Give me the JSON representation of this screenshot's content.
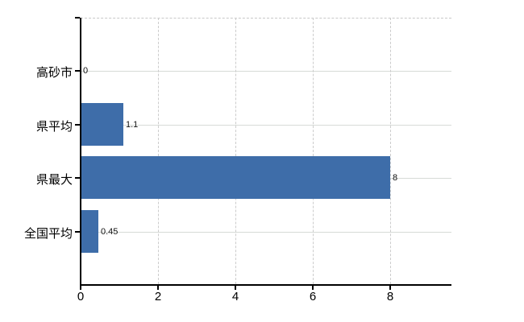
{
  "chart_data": {
    "type": "bar",
    "orientation": "horizontal",
    "title": "",
    "categories": [
      "高砂市",
      "県平均",
      "県最大",
      "全国平均"
    ],
    "values": [
      0,
      1.1,
      8,
      0.45
    ],
    "value_labels": [
      "0",
      "1.1",
      "8",
      "0.45"
    ],
    "x_ticks": [
      0,
      2,
      4,
      6,
      8
    ],
    "x_tick_labels": [
      "0",
      "2",
      "4",
      "6",
      "8"
    ],
    "xlim": [
      0,
      9.6
    ],
    "grid": true,
    "legend": false,
    "colors": {
      "bar": "#3e6da9",
      "horizontal_gridline": "#d7dbd7",
      "vertical_gridline": "#cccccc",
      "plot_border": "#c9c9c9",
      "axis": "#000000",
      "category_text": "#000000",
      "value_text": "#111111",
      "tick_text": "#000000",
      "background": "#ffffff"
    }
  }
}
